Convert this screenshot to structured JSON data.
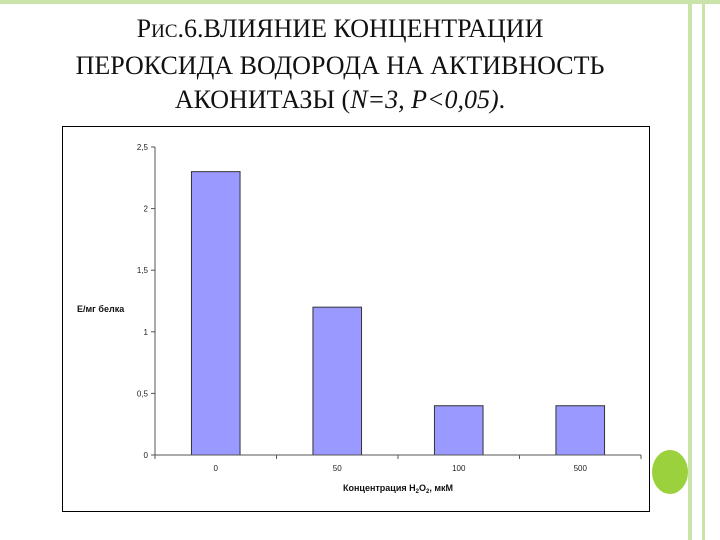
{
  "slide": {
    "title_line1_prefix": "Р",
    "title_line1_small": "ИС",
    "title_line1_rest": ".6.ВЛИЯНИЕ КОНЦЕНТРАЦИИ",
    "title_line2": "ПЕРОКСИДА ВОДОРОДА НА АКТИВНОСТЬ",
    "title_line3_prefix": "АКОНИТАЗЫ (",
    "title_line3_italic": "N=3, P<0,05)",
    "title_line3_suffix": "."
  },
  "colors": {
    "bar_fill": "#9999ff",
    "bar_stroke": "#333333",
    "frame": "#c9e3a8",
    "accent_dot": "#9bd13c"
  },
  "chart_data": {
    "type": "bar",
    "categories": [
      "0",
      "50",
      "100",
      "500"
    ],
    "values": [
      2.3,
      1.2,
      0.4,
      0.4
    ],
    "ylim": [
      0,
      2.5
    ],
    "yticks": [
      "0",
      "0,5",
      "1",
      "1,5",
      "2",
      "2,5"
    ],
    "ylabel": "Е/мг белка",
    "xlabel_main": "Концентрация H",
    "xlabel_sub1": "2",
    "xlabel_mid": "O",
    "xlabel_sub2": "2",
    "xlabel_end": ", мкМ",
    "grid": false,
    "legend": "none"
  }
}
